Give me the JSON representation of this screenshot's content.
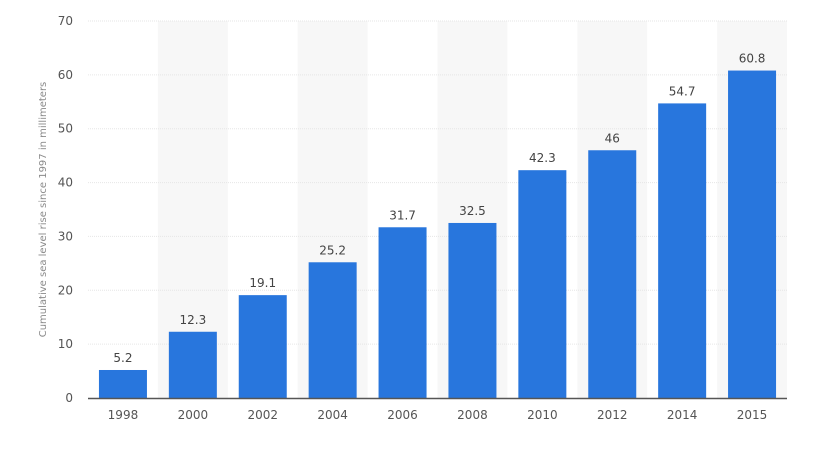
{
  "chart_data": {
    "type": "bar",
    "title": "",
    "xlabel": "",
    "ylabel": "Cumulative sea level rise since 1997 in millimeters",
    "categories": [
      "1998",
      "2000",
      "2002",
      "2004",
      "2006",
      "2008",
      "2010",
      "2012",
      "2014",
      "2015"
    ],
    "values": [
      5.2,
      12.3,
      19.1,
      25.2,
      31.7,
      32.5,
      42.3,
      46,
      54.7,
      60.8
    ],
    "value_labels": [
      "5.2",
      "12.3",
      "19.1",
      "25.2",
      "31.7",
      "32.5",
      "42.3",
      "46",
      "54.7",
      "60.8"
    ],
    "ylim": [
      0,
      70
    ],
    "yticks": [
      "0",
      "10",
      "20",
      "30",
      "40",
      "50",
      "60",
      "70"
    ],
    "grid": true,
    "legend": "none",
    "colors": {
      "bar": "#2876dd",
      "band": "#f7f7f7",
      "grid": "#e6e6e6",
      "axis": "#555555"
    }
  }
}
